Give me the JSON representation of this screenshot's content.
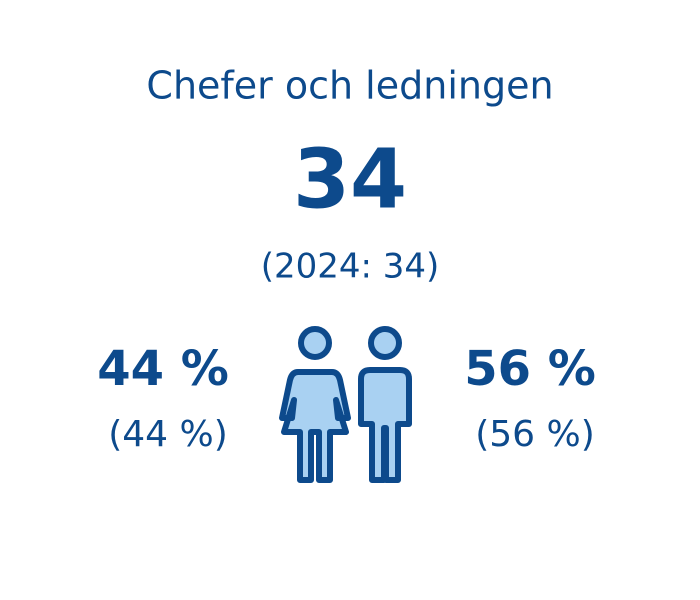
{
  "title": "Chefer och ledningen",
  "total": {
    "value": "34",
    "previous": "(2024: 34)"
  },
  "women": {
    "share": "44 %",
    "previous": "(44 %)"
  },
  "men": {
    "share": "56 %",
    "previous": "(56 %)"
  }
}
